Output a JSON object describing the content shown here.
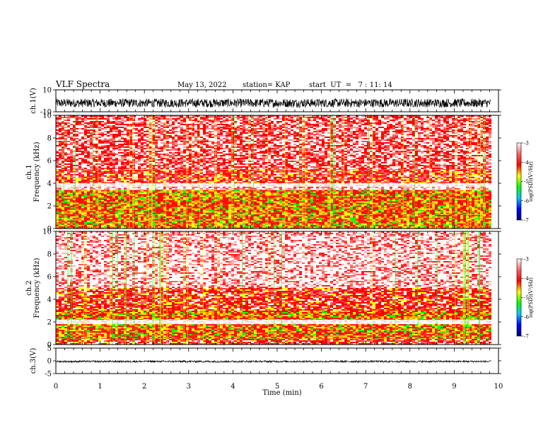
{
  "header": {
    "title": "VLF Spectra",
    "date": "May 13, 2022",
    "station": "station= KAP",
    "start_time": "start  UT  =   7 : 11: 14"
  },
  "colors": {
    "trace": "#000000",
    "spectrogram_scale": [
      "#000080",
      "#0000ff",
      "#00c8ff",
      "#00ff00",
      "#ffff00",
      "#ff0000",
      "#ff6060",
      "#ffffff"
    ]
  },
  "chart_data": [
    {
      "type": "line",
      "name": "ch1-waveform",
      "ylabel": "ch.1(V)",
      "ylim": [
        -10,
        10
      ],
      "yticks": [
        "10",
        "-10"
      ],
      "xlim": [
        0,
        10
      ],
      "trace_band": [
        -6,
        2
      ]
    },
    {
      "type": "heatmap",
      "name": "ch1-spectrogram",
      "ylabel": "ch.1\nFrequency (kHz)",
      "ylabel_lines": [
        "ch.1",
        "Frequency (kHz)"
      ],
      "ylim": [
        0,
        10
      ],
      "yticks": [
        "0",
        "2",
        "4",
        "6",
        "8",
        "10"
      ],
      "xlim": [
        0,
        9.83
      ],
      "bands": [
        {
          "from": 0.0,
          "to": 1.2,
          "level": "high"
        },
        {
          "from": 1.2,
          "to": 3.4,
          "level": "high"
        },
        {
          "from": 3.4,
          "to": 3.7,
          "level": "low"
        },
        {
          "from": 3.7,
          "to": 4.0,
          "level": "gap"
        },
        {
          "from": 4.0,
          "to": 5.2,
          "level": "mid"
        },
        {
          "from": 5.2,
          "to": 10.0,
          "level": "mid-low"
        }
      ],
      "colorbar": {
        "label": "log(PSD)(V²/Hz)",
        "ticks": [
          "-3",
          "-4",
          "-5",
          "-6",
          "-7"
        ],
        "range": [
          -7,
          -3
        ]
      }
    },
    {
      "type": "heatmap",
      "name": "ch2-spectrogram",
      "ylabel": "ch.2\nFrequency (kHz)",
      "ylabel_lines": [
        "ch.2",
        "Frequency (kHz)"
      ],
      "ylim": [
        0,
        10
      ],
      "yticks": [
        "0",
        "2",
        "4",
        "6",
        "8",
        "10"
      ],
      "xlim": [
        0,
        9.83
      ],
      "bands": [
        {
          "from": 0.0,
          "to": 0.5,
          "level": "mid"
        },
        {
          "from": 0.5,
          "to": 1.8,
          "level": "high"
        },
        {
          "from": 1.8,
          "to": 2.2,
          "level": "gap"
        },
        {
          "from": 2.2,
          "to": 3.0,
          "level": "high"
        },
        {
          "from": 3.0,
          "to": 4.0,
          "level": "mid"
        },
        {
          "from": 4.0,
          "to": 5.0,
          "level": "mid"
        },
        {
          "from": 5.0,
          "to": 10.0,
          "level": "low"
        }
      ],
      "colorbar": {
        "label": "log(PSD)(V²/Hz)",
        "ticks": [
          "-3",
          "-4",
          "-5",
          "-6",
          "-7"
        ],
        "range": [
          -7,
          -3
        ]
      }
    },
    {
      "type": "line",
      "name": "ch3-waveform",
      "ylabel": "ch.3(V)",
      "ylim": [
        -5,
        5
      ],
      "yticks": [
        "5",
        "0",
        "-5"
      ],
      "xlim": [
        0,
        10
      ],
      "trace_band": [
        -0.6,
        0.1
      ]
    }
  ],
  "xaxis": {
    "label": "Time (min)",
    "xlim": [
      0,
      10
    ],
    "ticks": [
      "0",
      "1",
      "2",
      "3",
      "4",
      "5",
      "6",
      "7",
      "8",
      "9",
      "10"
    ]
  }
}
